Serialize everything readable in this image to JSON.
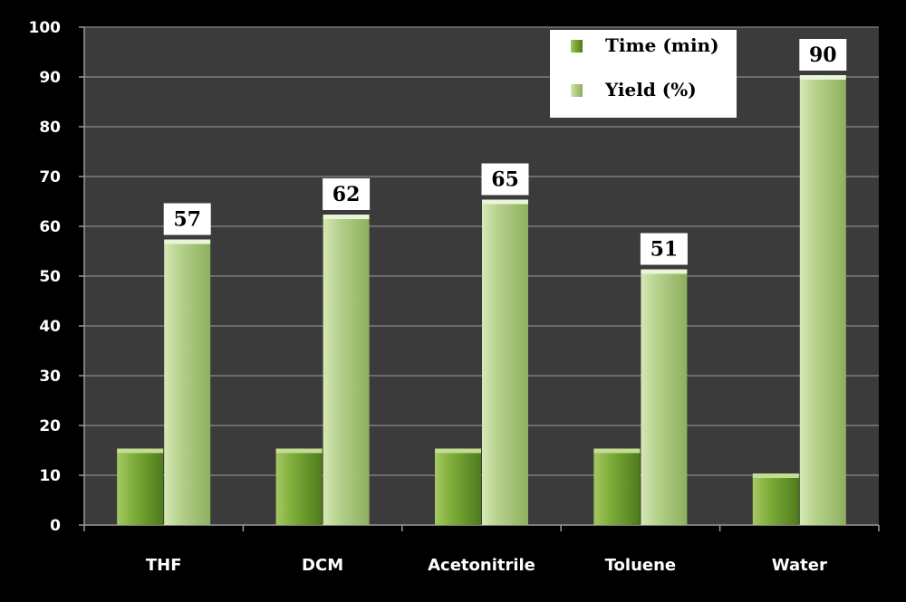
{
  "chart_data": {
    "type": "bar",
    "title": "",
    "xlabel": "",
    "ylabel": "",
    "categories": [
      "THF",
      "DCM",
      "Acetonitrile",
      "Toluene",
      "Water"
    ],
    "series": [
      {
        "name": "Time (min)",
        "values": [
          15,
          15,
          15,
          15,
          10
        ],
        "color": "#6f9a2e"
      },
      {
        "name": "Yield (%)",
        "values": [
          57,
          62,
          65,
          51,
          90
        ],
        "color": "#a9c878"
      }
    ],
    "data_labels": {
      "series": "Yield (%)",
      "values": [
        "57",
        "62",
        "65",
        "51",
        "90"
      ]
    },
    "ylim": [
      0,
      100
    ],
    "yticks": [
      "0",
      "10",
      "20",
      "30",
      "40",
      "50",
      "60",
      "70",
      "80",
      "90",
      "100"
    ],
    "grid": true,
    "legend": "top-right",
    "colors": {
      "background": "#000000",
      "plot_area": "#3b3b3b",
      "gridline": "#8a8a8a",
      "axis": "#9a9a9a",
      "text": "#ffffff"
    }
  }
}
